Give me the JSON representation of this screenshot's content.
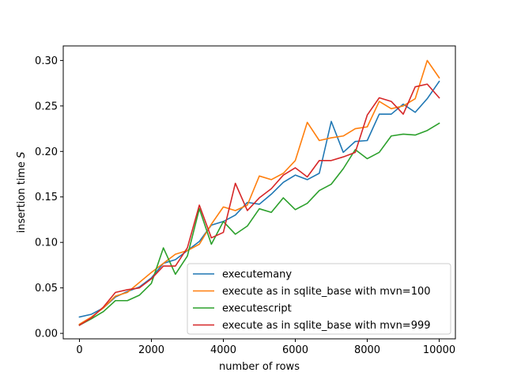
{
  "chart_data": {
    "type": "line",
    "xlabel": "number of rows",
    "ylabel": "insertion time ",
    "ylabel_unit": "S",
    "xlim": [
      -450,
      10450
    ],
    "ylim": [
      -0.006,
      0.316
    ],
    "x_ticks": [
      0,
      2000,
      4000,
      6000,
      8000,
      10000
    ],
    "x_tick_labels": [
      "0",
      "2000",
      "4000",
      "6000",
      "8000",
      "10000"
    ],
    "y_ticks": [
      0.0,
      0.05,
      0.1,
      0.15,
      0.2,
      0.25,
      0.3
    ],
    "y_tick_labels": [
      "0.00",
      "0.05",
      "0.10",
      "0.15",
      "0.20",
      "0.25",
      "0.30"
    ],
    "legend_position": "lower-right",
    "grid": false,
    "x": [
      0,
      333,
      667,
      1000,
      1333,
      1667,
      2000,
      2333,
      2667,
      3000,
      3333,
      3667,
      4000,
      4333,
      4667,
      5000,
      5333,
      5667,
      6000,
      6333,
      6667,
      7000,
      7333,
      7667,
      8000,
      8333,
      8667,
      9000,
      9333,
      9667,
      10000
    ],
    "series": [
      {
        "name": "executemany",
        "color": "#1f77b4",
        "values": [
          0.018,
          0.021,
          0.028,
          0.04,
          0.046,
          0.051,
          0.061,
          0.077,
          0.081,
          0.091,
          0.101,
          0.119,
          0.123,
          0.13,
          0.144,
          0.142,
          0.153,
          0.166,
          0.174,
          0.169,
          0.176,
          0.233,
          0.199,
          0.211,
          0.212,
          0.241,
          0.241,
          0.252,
          0.243,
          0.258,
          0.277
        ]
      },
      {
        "name": "execute as in sqlite_base with mvn=100",
        "color": "#ff7f0e",
        "values": [
          0.01,
          0.018,
          0.028,
          0.041,
          0.045,
          0.056,
          0.067,
          0.077,
          0.087,
          0.091,
          0.098,
          0.12,
          0.139,
          0.135,
          0.141,
          0.173,
          0.169,
          0.176,
          0.19,
          0.232,
          0.212,
          0.215,
          0.217,
          0.225,
          0.227,
          0.255,
          0.247,
          0.25,
          0.258,
          0.3,
          0.281
        ]
      },
      {
        "name": "executescript",
        "color": "#2ca02c",
        "values": [
          0.009,
          0.016,
          0.024,
          0.036,
          0.036,
          0.042,
          0.055,
          0.094,
          0.065,
          0.085,
          0.137,
          0.098,
          0.123,
          0.109,
          0.118,
          0.137,
          0.133,
          0.149,
          0.136,
          0.143,
          0.157,
          0.164,
          0.181,
          0.202,
          0.192,
          0.199,
          0.217,
          0.219,
          0.218,
          0.223,
          0.231
        ]
      },
      {
        "name": "execute as in sqlite_base with mvn=999",
        "color": "#d62728",
        "values": [
          0.009,
          0.017,
          0.029,
          0.045,
          0.048,
          0.05,
          0.06,
          0.074,
          0.074,
          0.094,
          0.141,
          0.105,
          0.111,
          0.165,
          0.135,
          0.149,
          0.159,
          0.174,
          0.182,
          0.172,
          0.19,
          0.19,
          0.194,
          0.199,
          0.24,
          0.259,
          0.255,
          0.241,
          0.271,
          0.274,
          0.259
        ]
      }
    ]
  }
}
